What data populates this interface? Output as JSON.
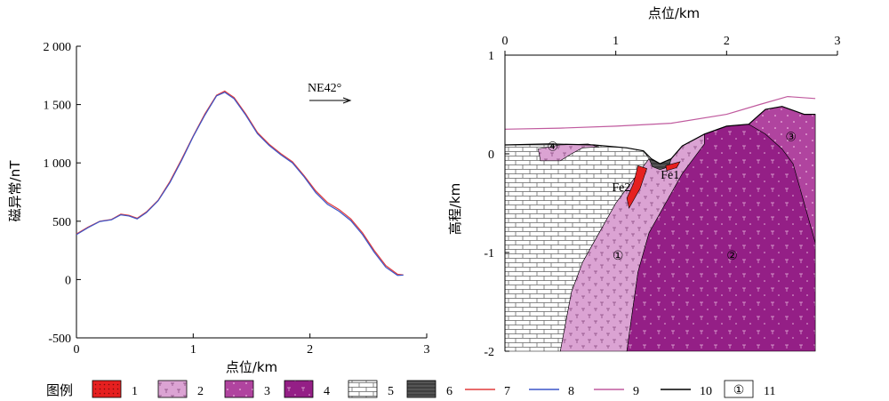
{
  "chart_data": [
    {
      "type": "line",
      "xlabel": "点位/km",
      "ylabel": "磁异常/nT",
      "xlim": [
        0,
        3
      ],
      "ylim": [
        -500,
        2000
      ],
      "x_ticks": [
        "0",
        "1",
        "2",
        "3"
      ],
      "y_ticks": [
        "-500",
        "0",
        "500",
        "1 000",
        "1 500",
        "2 000"
      ],
      "annotation": "NE42°",
      "series": [
        {
          "legend_number": "7",
          "color": "#e23b3b",
          "points": [
            [
              0,
              390
            ],
            [
              0.1,
              450
            ],
            [
              0.2,
              500
            ],
            [
              0.3,
              515
            ],
            [
              0.38,
              560
            ],
            [
              0.45,
              550
            ],
            [
              0.52,
              525
            ],
            [
              0.6,
              580
            ],
            [
              0.7,
              680
            ],
            [
              0.8,
              840
            ],
            [
              0.9,
              1030
            ],
            [
              1.0,
              1230
            ],
            [
              1.1,
              1420
            ],
            [
              1.2,
              1580
            ],
            [
              1.27,
              1615
            ],
            [
              1.35,
              1560
            ],
            [
              1.45,
              1420
            ],
            [
              1.55,
              1260
            ],
            [
              1.65,
              1160
            ],
            [
              1.75,
              1080
            ],
            [
              1.85,
              1010
            ],
            [
              1.95,
              890
            ],
            [
              2.05,
              760
            ],
            [
              2.15,
              660
            ],
            [
              2.25,
              600
            ],
            [
              2.35,
              520
            ],
            [
              2.45,
              400
            ],
            [
              2.55,
              250
            ],
            [
              2.65,
              120
            ],
            [
              2.75,
              45
            ],
            [
              2.8,
              40
            ]
          ]
        },
        {
          "legend_number": "8",
          "color": "#3b55c8",
          "points": [
            [
              0,
              385
            ],
            [
              0.1,
              445
            ],
            [
              0.2,
              498
            ],
            [
              0.3,
              512
            ],
            [
              0.38,
              555
            ],
            [
              0.45,
              545
            ],
            [
              0.52,
              520
            ],
            [
              0.6,
              575
            ],
            [
              0.7,
              675
            ],
            [
              0.8,
              830
            ],
            [
              0.9,
              1020
            ],
            [
              1.0,
              1225
            ],
            [
              1.1,
              1410
            ],
            [
              1.2,
              1575
            ],
            [
              1.27,
              1605
            ],
            [
              1.35,
              1550
            ],
            [
              1.45,
              1410
            ],
            [
              1.55,
              1250
            ],
            [
              1.65,
              1150
            ],
            [
              1.75,
              1070
            ],
            [
              1.85,
              1000
            ],
            [
              1.95,
              880
            ],
            [
              2.05,
              745
            ],
            [
              2.15,
              645
            ],
            [
              2.25,
              585
            ],
            [
              2.35,
              505
            ],
            [
              2.45,
              385
            ],
            [
              2.55,
              235
            ],
            [
              2.65,
              105
            ],
            [
              2.75,
              35
            ],
            [
              2.8,
              38
            ]
          ]
        }
      ]
    },
    {
      "type": "area",
      "title": "点位/km",
      "ylabel": "高程/km",
      "xlim": [
        0,
        3
      ],
      "ylim": [
        -2,
        1
      ],
      "x_ticks": [
        "0",
        "1",
        "2",
        "3"
      ],
      "y_ticks": [
        "1",
        "0",
        "-1",
        "-2"
      ],
      "labels": {
        "unit_1": "①",
        "unit_2": "②",
        "unit_3": "③",
        "unit_4": "④",
        "orebody_1": "Fe1",
        "orebody_2": "Fe2"
      },
      "topography": [
        [
          0,
          0.09
        ],
        [
          0.4,
          0.1
        ],
        [
          0.8,
          0.09
        ],
        [
          1.1,
          0.06
        ],
        [
          1.25,
          0.03
        ],
        [
          1.32,
          -0.05
        ],
        [
          1.4,
          -0.1
        ],
        [
          1.5,
          -0.05
        ],
        [
          1.6,
          0.08
        ],
        [
          1.8,
          0.2
        ],
        [
          2.0,
          0.28
        ],
        [
          2.2,
          0.3
        ],
        [
          2.35,
          0.45
        ],
        [
          2.5,
          0.48
        ],
        [
          2.7,
          0.4
        ],
        [
          2.8,
          0.4
        ]
      ],
      "profile_line_9": [
        [
          0,
          0.25
        ],
        [
          0.5,
          0.26
        ],
        [
          1.0,
          0.28
        ],
        [
          1.5,
          0.31
        ],
        [
          2.0,
          0.4
        ],
        [
          2.3,
          0.5
        ],
        [
          2.55,
          0.58
        ],
        [
          2.8,
          0.56
        ]
      ],
      "polygons": {
        "unit_5": [
          [
            0,
            0.09
          ],
          [
            0.8,
            0.09
          ],
          [
            1.1,
            0.06
          ],
          [
            1.25,
            0.03
          ],
          [
            1.3,
            -0.05
          ],
          [
            1.2,
            -0.2
          ],
          [
            1.0,
            -0.5
          ],
          [
            0.85,
            -0.8
          ],
          [
            0.7,
            -1.1
          ],
          [
            0.6,
            -1.4
          ],
          [
            0.5,
            -2
          ],
          [
            0,
            -2
          ]
        ],
        "unit_2": [
          [
            1.3,
            -0.05
          ],
          [
            1.4,
            -0.1
          ],
          [
            1.5,
            -0.05
          ],
          [
            1.6,
            0.08
          ],
          [
            1.8,
            0.2
          ],
          [
            1.8,
            0.1
          ],
          [
            1.6,
            -0.2
          ],
          [
            1.45,
            -0.5
          ],
          [
            1.3,
            -0.8
          ],
          [
            1.2,
            -1.2
          ],
          [
            1.1,
            -2
          ],
          [
            0.5,
            -2
          ],
          [
            0.6,
            -1.4
          ],
          [
            0.7,
            -1.1
          ],
          [
            0.85,
            -0.8
          ],
          [
            1.0,
            -0.5
          ],
          [
            1.2,
            -0.2
          ]
        ],
        "unit_4": [
          [
            1.8,
            0.2
          ],
          [
            2.0,
            0.28
          ],
          [
            2.2,
            0.3
          ],
          [
            2.35,
            0.2
          ],
          [
            2.5,
            0.05
          ],
          [
            2.6,
            -0.1
          ],
          [
            2.7,
            -0.5
          ],
          [
            2.8,
            -0.9
          ],
          [
            2.8,
            -2
          ],
          [
            1.1,
            -2
          ],
          [
            1.2,
            -1.2
          ],
          [
            1.3,
            -0.8
          ],
          [
            1.45,
            -0.5
          ],
          [
            1.6,
            -0.2
          ],
          [
            1.8,
            0.1
          ]
        ],
        "unit_3": [
          [
            2.2,
            0.3
          ],
          [
            2.35,
            0.45
          ],
          [
            2.5,
            0.48
          ],
          [
            2.7,
            0.4
          ],
          [
            2.8,
            0.4
          ],
          [
            2.8,
            -0.9
          ],
          [
            2.7,
            -0.5
          ],
          [
            2.6,
            -0.1
          ],
          [
            2.5,
            0.05
          ],
          [
            2.35,
            0.2
          ]
        ],
        "unit_1": [
          [
            0.3,
            0.05
          ],
          [
            0.5,
            0.09
          ],
          [
            0.75,
            0.1
          ],
          [
            0.85,
            0.07
          ],
          [
            0.7,
            0.06
          ],
          [
            0.6,
            0.0
          ],
          [
            0.5,
            -0.07
          ],
          [
            0.32,
            -0.07
          ]
        ],
        "unit_6": [
          [
            1.3,
            -0.05
          ],
          [
            1.4,
            -0.1
          ],
          [
            1.5,
            -0.05
          ],
          [
            1.48,
            -0.13
          ],
          [
            1.4,
            -0.16
          ],
          [
            1.33,
            -0.13
          ]
        ],
        "unit_1_fe2": [
          [
            1.2,
            -0.12
          ],
          [
            1.28,
            -0.15
          ],
          [
            1.22,
            -0.35
          ],
          [
            1.12,
            -0.55
          ],
          [
            1.1,
            -0.45
          ],
          [
            1.16,
            -0.3
          ]
        ],
        "unit_1_fe1": [
          [
            1.45,
            -0.12
          ],
          [
            1.58,
            -0.08
          ],
          [
            1.55,
            -0.14
          ],
          [
            1.46,
            -0.17
          ]
        ]
      }
    }
  ],
  "legend": {
    "title": "图例",
    "items": [
      {
        "number": "1",
        "swatch": "fill",
        "color": "#e62020"
      },
      {
        "number": "2",
        "swatch": "fill",
        "color": "#dba3d3"
      },
      {
        "number": "3",
        "swatch": "fill",
        "color": "#b0449f"
      },
      {
        "number": "4",
        "swatch": "fill",
        "color": "#941f86"
      },
      {
        "number": "5",
        "swatch": "limestone",
        "color": "#ffffff"
      },
      {
        "number": "6",
        "swatch": "fill",
        "color": "#3f3f3f"
      },
      {
        "number": "7",
        "swatch": "line",
        "color": "#e23b3b"
      },
      {
        "number": "8",
        "swatch": "line",
        "color": "#3b55c8"
      },
      {
        "number": "9",
        "swatch": "line",
        "color": "#c05a9e"
      },
      {
        "number": "10",
        "swatch": "line",
        "color": "#000000"
      },
      {
        "number": "11",
        "swatch": "circle",
        "symbol": "①"
      }
    ]
  }
}
